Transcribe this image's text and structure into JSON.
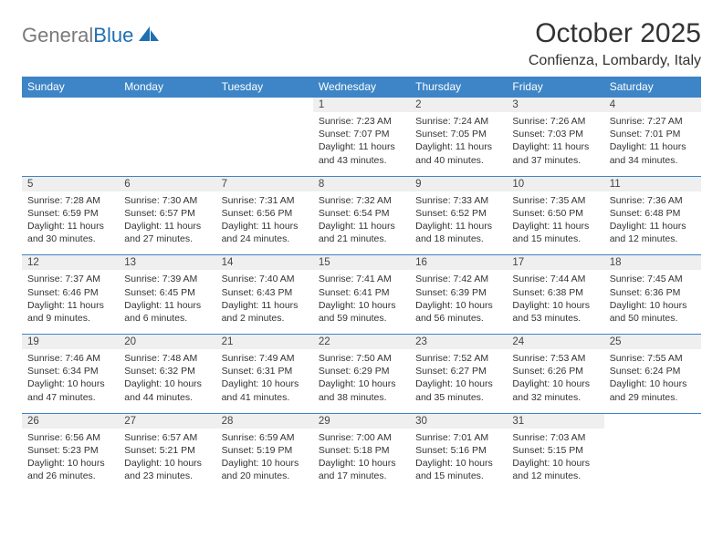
{
  "logo": {
    "part1": "General",
    "part2": "Blue"
  },
  "title": "October 2025",
  "location": "Confienza, Lombardy, Italy",
  "header_bg": "#3d85c6",
  "header_fg": "#ffffff",
  "daynum_bg": "#efefef",
  "border_color": "#3d85c6",
  "dayNames": [
    "Sunday",
    "Monday",
    "Tuesday",
    "Wednesday",
    "Thursday",
    "Friday",
    "Saturday"
  ],
  "weeks": [
    {
      "nums": [
        "",
        "",
        "",
        "1",
        "2",
        "3",
        "4"
      ],
      "cells": [
        null,
        null,
        null,
        {
          "sunrise": "Sunrise: 7:23 AM",
          "sunset": "Sunset: 7:07 PM",
          "day1": "Daylight: 11 hours",
          "day2": "and 43 minutes."
        },
        {
          "sunrise": "Sunrise: 7:24 AM",
          "sunset": "Sunset: 7:05 PM",
          "day1": "Daylight: 11 hours",
          "day2": "and 40 minutes."
        },
        {
          "sunrise": "Sunrise: 7:26 AM",
          "sunset": "Sunset: 7:03 PM",
          "day1": "Daylight: 11 hours",
          "day2": "and 37 minutes."
        },
        {
          "sunrise": "Sunrise: 7:27 AM",
          "sunset": "Sunset: 7:01 PM",
          "day1": "Daylight: 11 hours",
          "day2": "and 34 minutes."
        }
      ]
    },
    {
      "nums": [
        "5",
        "6",
        "7",
        "8",
        "9",
        "10",
        "11"
      ],
      "cells": [
        {
          "sunrise": "Sunrise: 7:28 AM",
          "sunset": "Sunset: 6:59 PM",
          "day1": "Daylight: 11 hours",
          "day2": "and 30 minutes."
        },
        {
          "sunrise": "Sunrise: 7:30 AM",
          "sunset": "Sunset: 6:57 PM",
          "day1": "Daylight: 11 hours",
          "day2": "and 27 minutes."
        },
        {
          "sunrise": "Sunrise: 7:31 AM",
          "sunset": "Sunset: 6:56 PM",
          "day1": "Daylight: 11 hours",
          "day2": "and 24 minutes."
        },
        {
          "sunrise": "Sunrise: 7:32 AM",
          "sunset": "Sunset: 6:54 PM",
          "day1": "Daylight: 11 hours",
          "day2": "and 21 minutes."
        },
        {
          "sunrise": "Sunrise: 7:33 AM",
          "sunset": "Sunset: 6:52 PM",
          "day1": "Daylight: 11 hours",
          "day2": "and 18 minutes."
        },
        {
          "sunrise": "Sunrise: 7:35 AM",
          "sunset": "Sunset: 6:50 PM",
          "day1": "Daylight: 11 hours",
          "day2": "and 15 minutes."
        },
        {
          "sunrise": "Sunrise: 7:36 AM",
          "sunset": "Sunset: 6:48 PM",
          "day1": "Daylight: 11 hours",
          "day2": "and 12 minutes."
        }
      ]
    },
    {
      "nums": [
        "12",
        "13",
        "14",
        "15",
        "16",
        "17",
        "18"
      ],
      "cells": [
        {
          "sunrise": "Sunrise: 7:37 AM",
          "sunset": "Sunset: 6:46 PM",
          "day1": "Daylight: 11 hours",
          "day2": "and 9 minutes."
        },
        {
          "sunrise": "Sunrise: 7:39 AM",
          "sunset": "Sunset: 6:45 PM",
          "day1": "Daylight: 11 hours",
          "day2": "and 6 minutes."
        },
        {
          "sunrise": "Sunrise: 7:40 AM",
          "sunset": "Sunset: 6:43 PM",
          "day1": "Daylight: 11 hours",
          "day2": "and 2 minutes."
        },
        {
          "sunrise": "Sunrise: 7:41 AM",
          "sunset": "Sunset: 6:41 PM",
          "day1": "Daylight: 10 hours",
          "day2": "and 59 minutes."
        },
        {
          "sunrise": "Sunrise: 7:42 AM",
          "sunset": "Sunset: 6:39 PM",
          "day1": "Daylight: 10 hours",
          "day2": "and 56 minutes."
        },
        {
          "sunrise": "Sunrise: 7:44 AM",
          "sunset": "Sunset: 6:38 PM",
          "day1": "Daylight: 10 hours",
          "day2": "and 53 minutes."
        },
        {
          "sunrise": "Sunrise: 7:45 AM",
          "sunset": "Sunset: 6:36 PM",
          "day1": "Daylight: 10 hours",
          "day2": "and 50 minutes."
        }
      ]
    },
    {
      "nums": [
        "19",
        "20",
        "21",
        "22",
        "23",
        "24",
        "25"
      ],
      "cells": [
        {
          "sunrise": "Sunrise: 7:46 AM",
          "sunset": "Sunset: 6:34 PM",
          "day1": "Daylight: 10 hours",
          "day2": "and 47 minutes."
        },
        {
          "sunrise": "Sunrise: 7:48 AM",
          "sunset": "Sunset: 6:32 PM",
          "day1": "Daylight: 10 hours",
          "day2": "and 44 minutes."
        },
        {
          "sunrise": "Sunrise: 7:49 AM",
          "sunset": "Sunset: 6:31 PM",
          "day1": "Daylight: 10 hours",
          "day2": "and 41 minutes."
        },
        {
          "sunrise": "Sunrise: 7:50 AM",
          "sunset": "Sunset: 6:29 PM",
          "day1": "Daylight: 10 hours",
          "day2": "and 38 minutes."
        },
        {
          "sunrise": "Sunrise: 7:52 AM",
          "sunset": "Sunset: 6:27 PM",
          "day1": "Daylight: 10 hours",
          "day2": "and 35 minutes."
        },
        {
          "sunrise": "Sunrise: 7:53 AM",
          "sunset": "Sunset: 6:26 PM",
          "day1": "Daylight: 10 hours",
          "day2": "and 32 minutes."
        },
        {
          "sunrise": "Sunrise: 7:55 AM",
          "sunset": "Sunset: 6:24 PM",
          "day1": "Daylight: 10 hours",
          "day2": "and 29 minutes."
        }
      ]
    },
    {
      "nums": [
        "26",
        "27",
        "28",
        "29",
        "30",
        "31",
        ""
      ],
      "cells": [
        {
          "sunrise": "Sunrise: 6:56 AM",
          "sunset": "Sunset: 5:23 PM",
          "day1": "Daylight: 10 hours",
          "day2": "and 26 minutes."
        },
        {
          "sunrise": "Sunrise: 6:57 AM",
          "sunset": "Sunset: 5:21 PM",
          "day1": "Daylight: 10 hours",
          "day2": "and 23 minutes."
        },
        {
          "sunrise": "Sunrise: 6:59 AM",
          "sunset": "Sunset: 5:19 PM",
          "day1": "Daylight: 10 hours",
          "day2": "and 20 minutes."
        },
        {
          "sunrise": "Sunrise: 7:00 AM",
          "sunset": "Sunset: 5:18 PM",
          "day1": "Daylight: 10 hours",
          "day2": "and 17 minutes."
        },
        {
          "sunrise": "Sunrise: 7:01 AM",
          "sunset": "Sunset: 5:16 PM",
          "day1": "Daylight: 10 hours",
          "day2": "and 15 minutes."
        },
        {
          "sunrise": "Sunrise: 7:03 AM",
          "sunset": "Sunset: 5:15 PM",
          "day1": "Daylight: 10 hours",
          "day2": "and 12 minutes."
        },
        null
      ]
    }
  ]
}
